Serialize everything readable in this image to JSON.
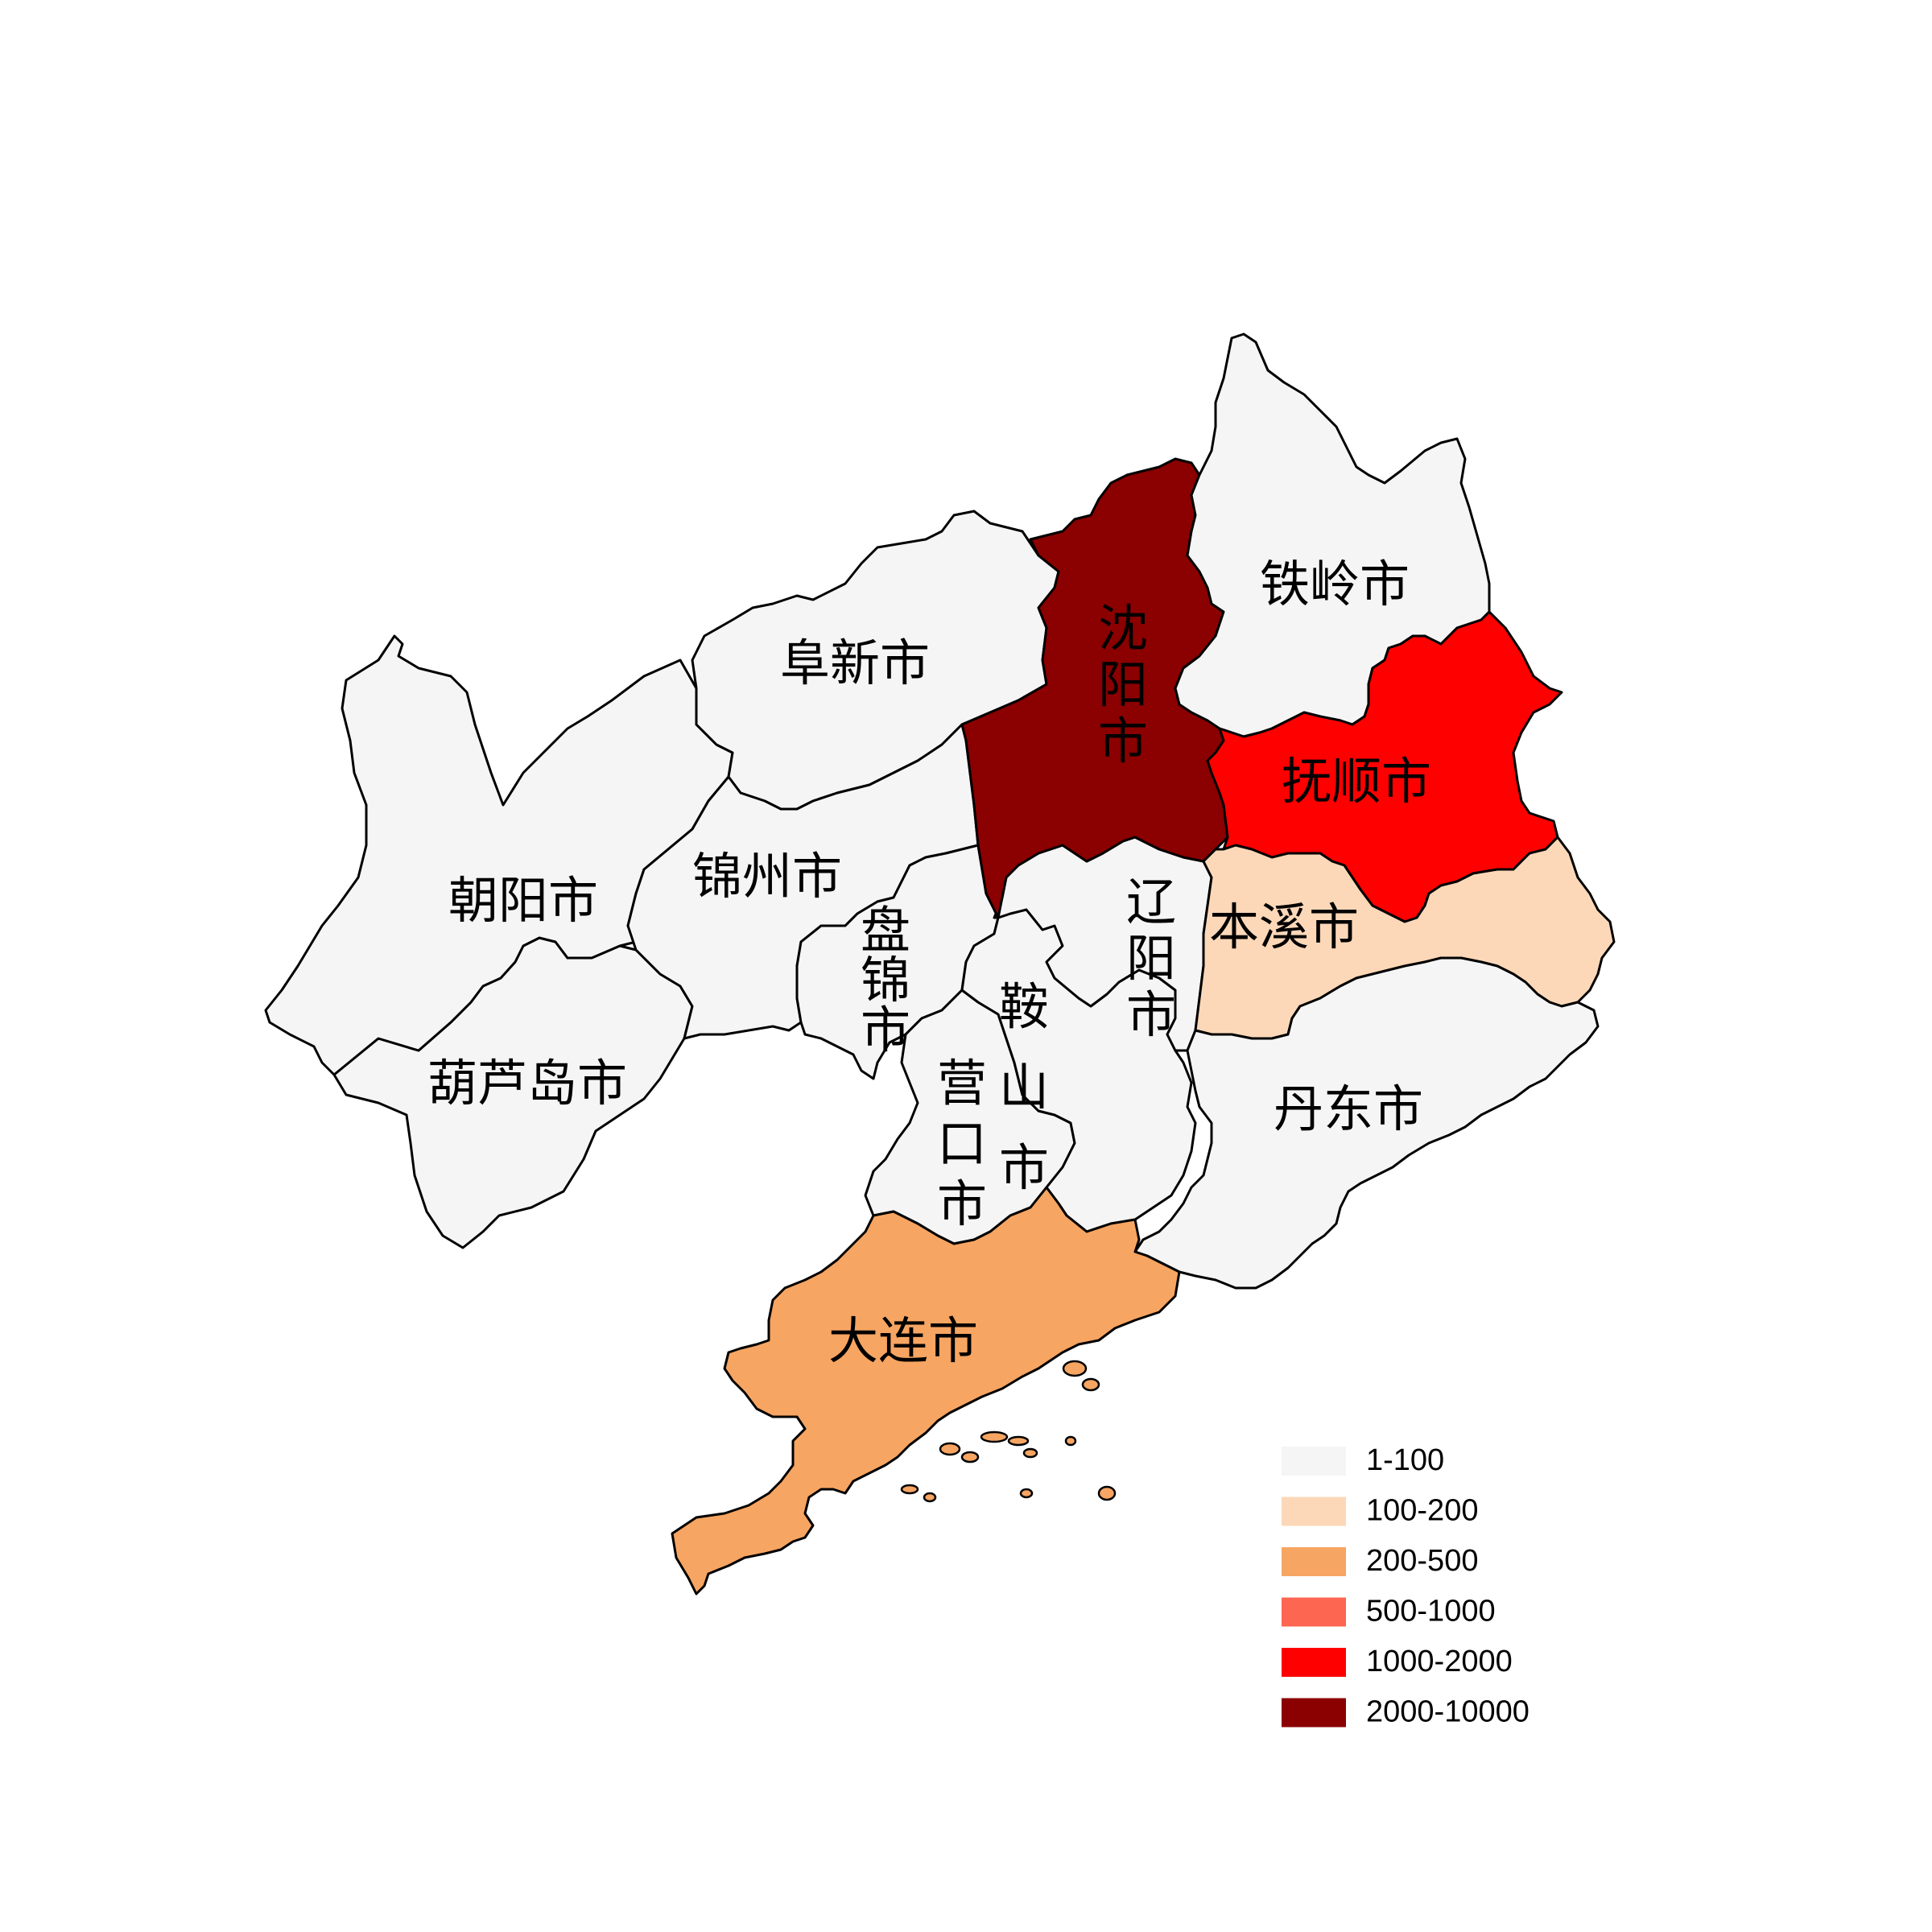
{
  "legend": [
    {
      "range": "1-100",
      "color": "#f5f5f5"
    },
    {
      "range": "100-200",
      "color": "#fcd8b8"
    },
    {
      "range": "200-500",
      "color": "#f7a562"
    },
    {
      "range": "500-1000",
      "color": "#fd6650"
    },
    {
      "range": "1000-2000",
      "color": "#fe0000"
    },
    {
      "range": "2000-10000",
      "color": "#8b0000"
    }
  ],
  "regions": {
    "tieling": {
      "name": "铁岭市",
      "bin": "1-100"
    },
    "shenyang": {
      "name": "沈阳市",
      "bin": "2000-10000"
    },
    "fushun": {
      "name": "抚顺市",
      "bin": "1000-2000"
    },
    "benxi": {
      "name": "本溪市",
      "bin": "100-200"
    },
    "fuxin": {
      "name": "阜新市",
      "bin": "1-100"
    },
    "chaoyang": {
      "name": "朝阳市",
      "bin": "1-100"
    },
    "jinzhou": {
      "name": "锦州市",
      "bin": "1-100"
    },
    "panjin": {
      "name": "盘锦市",
      "bin": "1-100"
    },
    "anshan": {
      "name": "鞍山市",
      "bin": "1-100"
    },
    "liaoyang": {
      "name": "辽阳市",
      "bin": "1-100"
    },
    "huludao": {
      "name": "葫芦岛市",
      "bin": "1-100"
    },
    "yingkou": {
      "name": "营口市",
      "bin": "1-100"
    },
    "dandong": {
      "name": "丹东市",
      "bin": "1-100"
    },
    "dalian": {
      "name": "大连市",
      "bin": "200-500"
    }
  }
}
